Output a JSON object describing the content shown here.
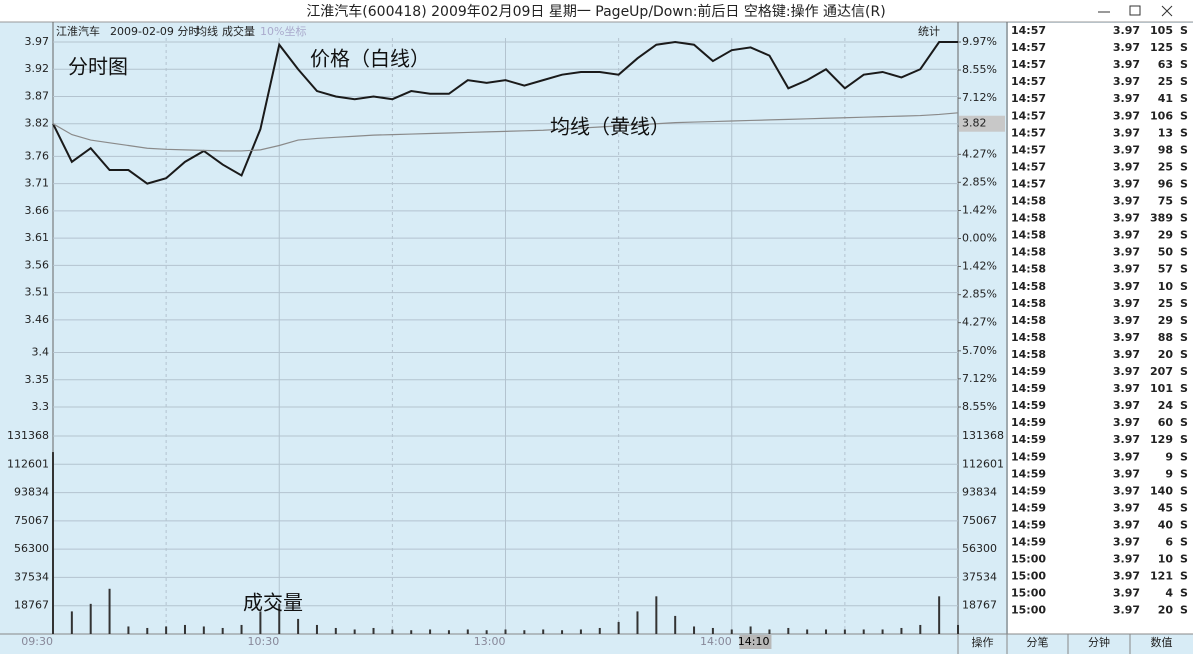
{
  "window": {
    "title": "江淮汽车(600418) 2009年02月09日 星期一 PageUp/Down:前后日 空格键:操作 通达信(R)"
  },
  "header": {
    "stock": "江淮汽车",
    "mode": "2009-02-09 分时",
    "scale": "10%坐标",
    "stats": "统计"
  },
  "chart_data": [
    {
      "type": "line",
      "annotations": [
        "分时图",
        "价格（白线）",
        "均线（黄线）"
      ],
      "ylim": [
        3.3,
        3.97
      ],
      "yticks": [
        3.97,
        3.92,
        3.87,
        3.82,
        3.76,
        3.71,
        3.66,
        3.61,
        3.56,
        3.51,
        3.46,
        3.4,
        3.35,
        3.3
      ],
      "y2lim": [
        -8.55,
        9.97
      ],
      "y2ticks": [
        {
          "value": 9.97,
          "label": "9.97%"
        },
        {
          "value": 8.55,
          "label": "8.55%"
        },
        {
          "value": 7.12,
          "label": "7.12%"
        },
        {
          "value": 5.7,
          "label": "5.70%"
        },
        {
          "value": 4.27,
          "label": "4.27%"
        },
        {
          "value": 2.85,
          "label": "2.85%"
        },
        {
          "value": 1.42,
          "label": "1.42%"
        },
        {
          "value": 0,
          "label": "0.00%"
        },
        {
          "value": -1.42,
          "label": "1.42%"
        },
        {
          "value": -2.85,
          "label": "2.85%"
        },
        {
          "value": -4.27,
          "label": "4.27%"
        },
        {
          "value": -5.7,
          "label": "5.70%"
        },
        {
          "value": -7.12,
          "label": "7.12%"
        },
        {
          "value": -8.55,
          "label": "8.55%"
        }
      ],
      "marker": 3.82,
      "series": [
        {
          "color": "#1a1a1a",
          "values": [
            3.82,
            3.75,
            3.775,
            3.735,
            3.735,
            3.71,
            3.72,
            3.75,
            3.77,
            3.745,
            3.725,
            3.81,
            3.965,
            3.92,
            3.88,
            3.87,
            3.865,
            3.87,
            3.865,
            3.88,
            3.875,
            3.875,
            3.9,
            3.895,
            3.9,
            3.89,
            3.9,
            3.91,
            3.915,
            3.915,
            3.91,
            3.94,
            3.965,
            3.97,
            3.965,
            3.935,
            3.955,
            3.96,
            3.945,
            3.885,
            3.9,
            3.92,
            3.885,
            3.91,
            3.915,
            3.905,
            3.92,
            3.97,
            3.97
          ]
        },
        {
          "name": "均线",
          "color": "#8a8a8a",
          "values": [
            3.82,
            3.8,
            3.79,
            3.785,
            3.78,
            3.775,
            3.773,
            3.772,
            3.771,
            3.77,
            3.77,
            3.772,
            3.78,
            3.79,
            3.793,
            3.795,
            3.797,
            3.799,
            3.8,
            3.801,
            3.802,
            3.803,
            3.804,
            3.805,
            3.806,
            3.807,
            3.808,
            3.81,
            3.812,
            3.814,
            3.816,
            3.818,
            3.82,
            3.822,
            3.823,
            3.824,
            3.825,
            3.826,
            3.827,
            3.828,
            3.829,
            3.83,
            3.831,
            3.832,
            3.833,
            3.834,
            3.835,
            3.837,
            3.84
          ]
        }
      ]
    },
    {
      "type": "bar",
      "name": "成交量",
      "annotation": "成交量",
      "color": "#333333",
      "categories": [
        "09:30",
        null,
        null,
        null,
        null,
        null,
        null,
        null,
        null,
        null,
        null,
        null,
        "10:30",
        null,
        null,
        null,
        null,
        null,
        null,
        null,
        null,
        null,
        null,
        null,
        "13:00",
        null,
        null,
        null,
        null,
        null,
        null,
        null,
        null,
        null,
        null,
        null,
        "14:00",
        null,
        "14:10",
        null,
        null,
        null,
        null,
        null,
        null,
        null,
        null,
        null,
        null
      ],
      "values": [
        120700,
        15000,
        20000,
        30000,
        5000,
        4000,
        5000,
        6000,
        5000,
        4000,
        6000,
        15000,
        20000,
        10000,
        6000,
        4000,
        3000,
        4000,
        3000,
        2500,
        3000,
        2500,
        3000,
        2500,
        3000,
        2500,
        3000,
        2500,
        3000,
        4000,
        8000,
        15000,
        25000,
        12000,
        5000,
        4000,
        3000,
        5000,
        3000,
        4000,
        3000,
        3000,
        3000,
        3000,
        3000,
        4000,
        6000,
        25000,
        6000
      ],
      "ylim": [
        0,
        131368
      ],
      "yticks": [
        131368,
        112601,
        93834,
        75067,
        56300,
        37534,
        18767
      ]
    }
  ],
  "trades": {
    "rows": [
      [
        "14:57",
        3.97,
        105,
        "S"
      ],
      [
        "14:57",
        3.97,
        125,
        "S"
      ],
      [
        "14:57",
        3.97,
        63,
        "S"
      ],
      [
        "14:57",
        3.97,
        25,
        "S"
      ],
      [
        "14:57",
        3.97,
        41,
        "S"
      ],
      [
        "14:57",
        3.97,
        106,
        "S"
      ],
      [
        "14:57",
        3.97,
        13,
        "S"
      ],
      [
        "14:57",
        3.97,
        98,
        "S"
      ],
      [
        "14:57",
        3.97,
        25,
        "S"
      ],
      [
        "14:57",
        3.97,
        96,
        "S"
      ],
      [
        "14:58",
        3.97,
        75,
        "S"
      ],
      [
        "14:58",
        3.97,
        389,
        "S"
      ],
      [
        "14:58",
        3.97,
        29,
        "S"
      ],
      [
        "14:58",
        3.97,
        50,
        "S"
      ],
      [
        "14:58",
        3.97,
        57,
        "S"
      ],
      [
        "14:58",
        3.97,
        10,
        "S"
      ],
      [
        "14:58",
        3.97,
        25,
        "S"
      ],
      [
        "14:58",
        3.97,
        29,
        "S"
      ],
      [
        "14:58",
        3.97,
        88,
        "S"
      ],
      [
        "14:58",
        3.97,
        20,
        "S"
      ],
      [
        "14:59",
        3.97,
        207,
        "S"
      ],
      [
        "14:59",
        3.97,
        101,
        "S"
      ],
      [
        "14:59",
        3.97,
        24,
        "S"
      ],
      [
        "14:59",
        3.97,
        60,
        "S"
      ],
      [
        "14:59",
        3.97,
        129,
        "S"
      ],
      [
        "14:59",
        3.97,
        9,
        "S"
      ],
      [
        "14:59",
        3.97,
        9,
        "S"
      ],
      [
        "14:59",
        3.97,
        140,
        "S"
      ],
      [
        "14:59",
        3.97,
        45,
        "S"
      ],
      [
        "14:59",
        3.97,
        40,
        "S"
      ],
      [
        "14:59",
        3.97,
        6,
        "S"
      ],
      [
        "15:00",
        3.97,
        10,
        "S"
      ],
      [
        "15:00",
        3.97,
        121,
        "S"
      ],
      [
        "15:00",
        3.97,
        4,
        "S"
      ],
      [
        "15:00",
        3.97,
        20,
        "S"
      ]
    ]
  },
  "tabs": [
    "操作",
    "分笔",
    "分钟",
    "数值"
  ]
}
